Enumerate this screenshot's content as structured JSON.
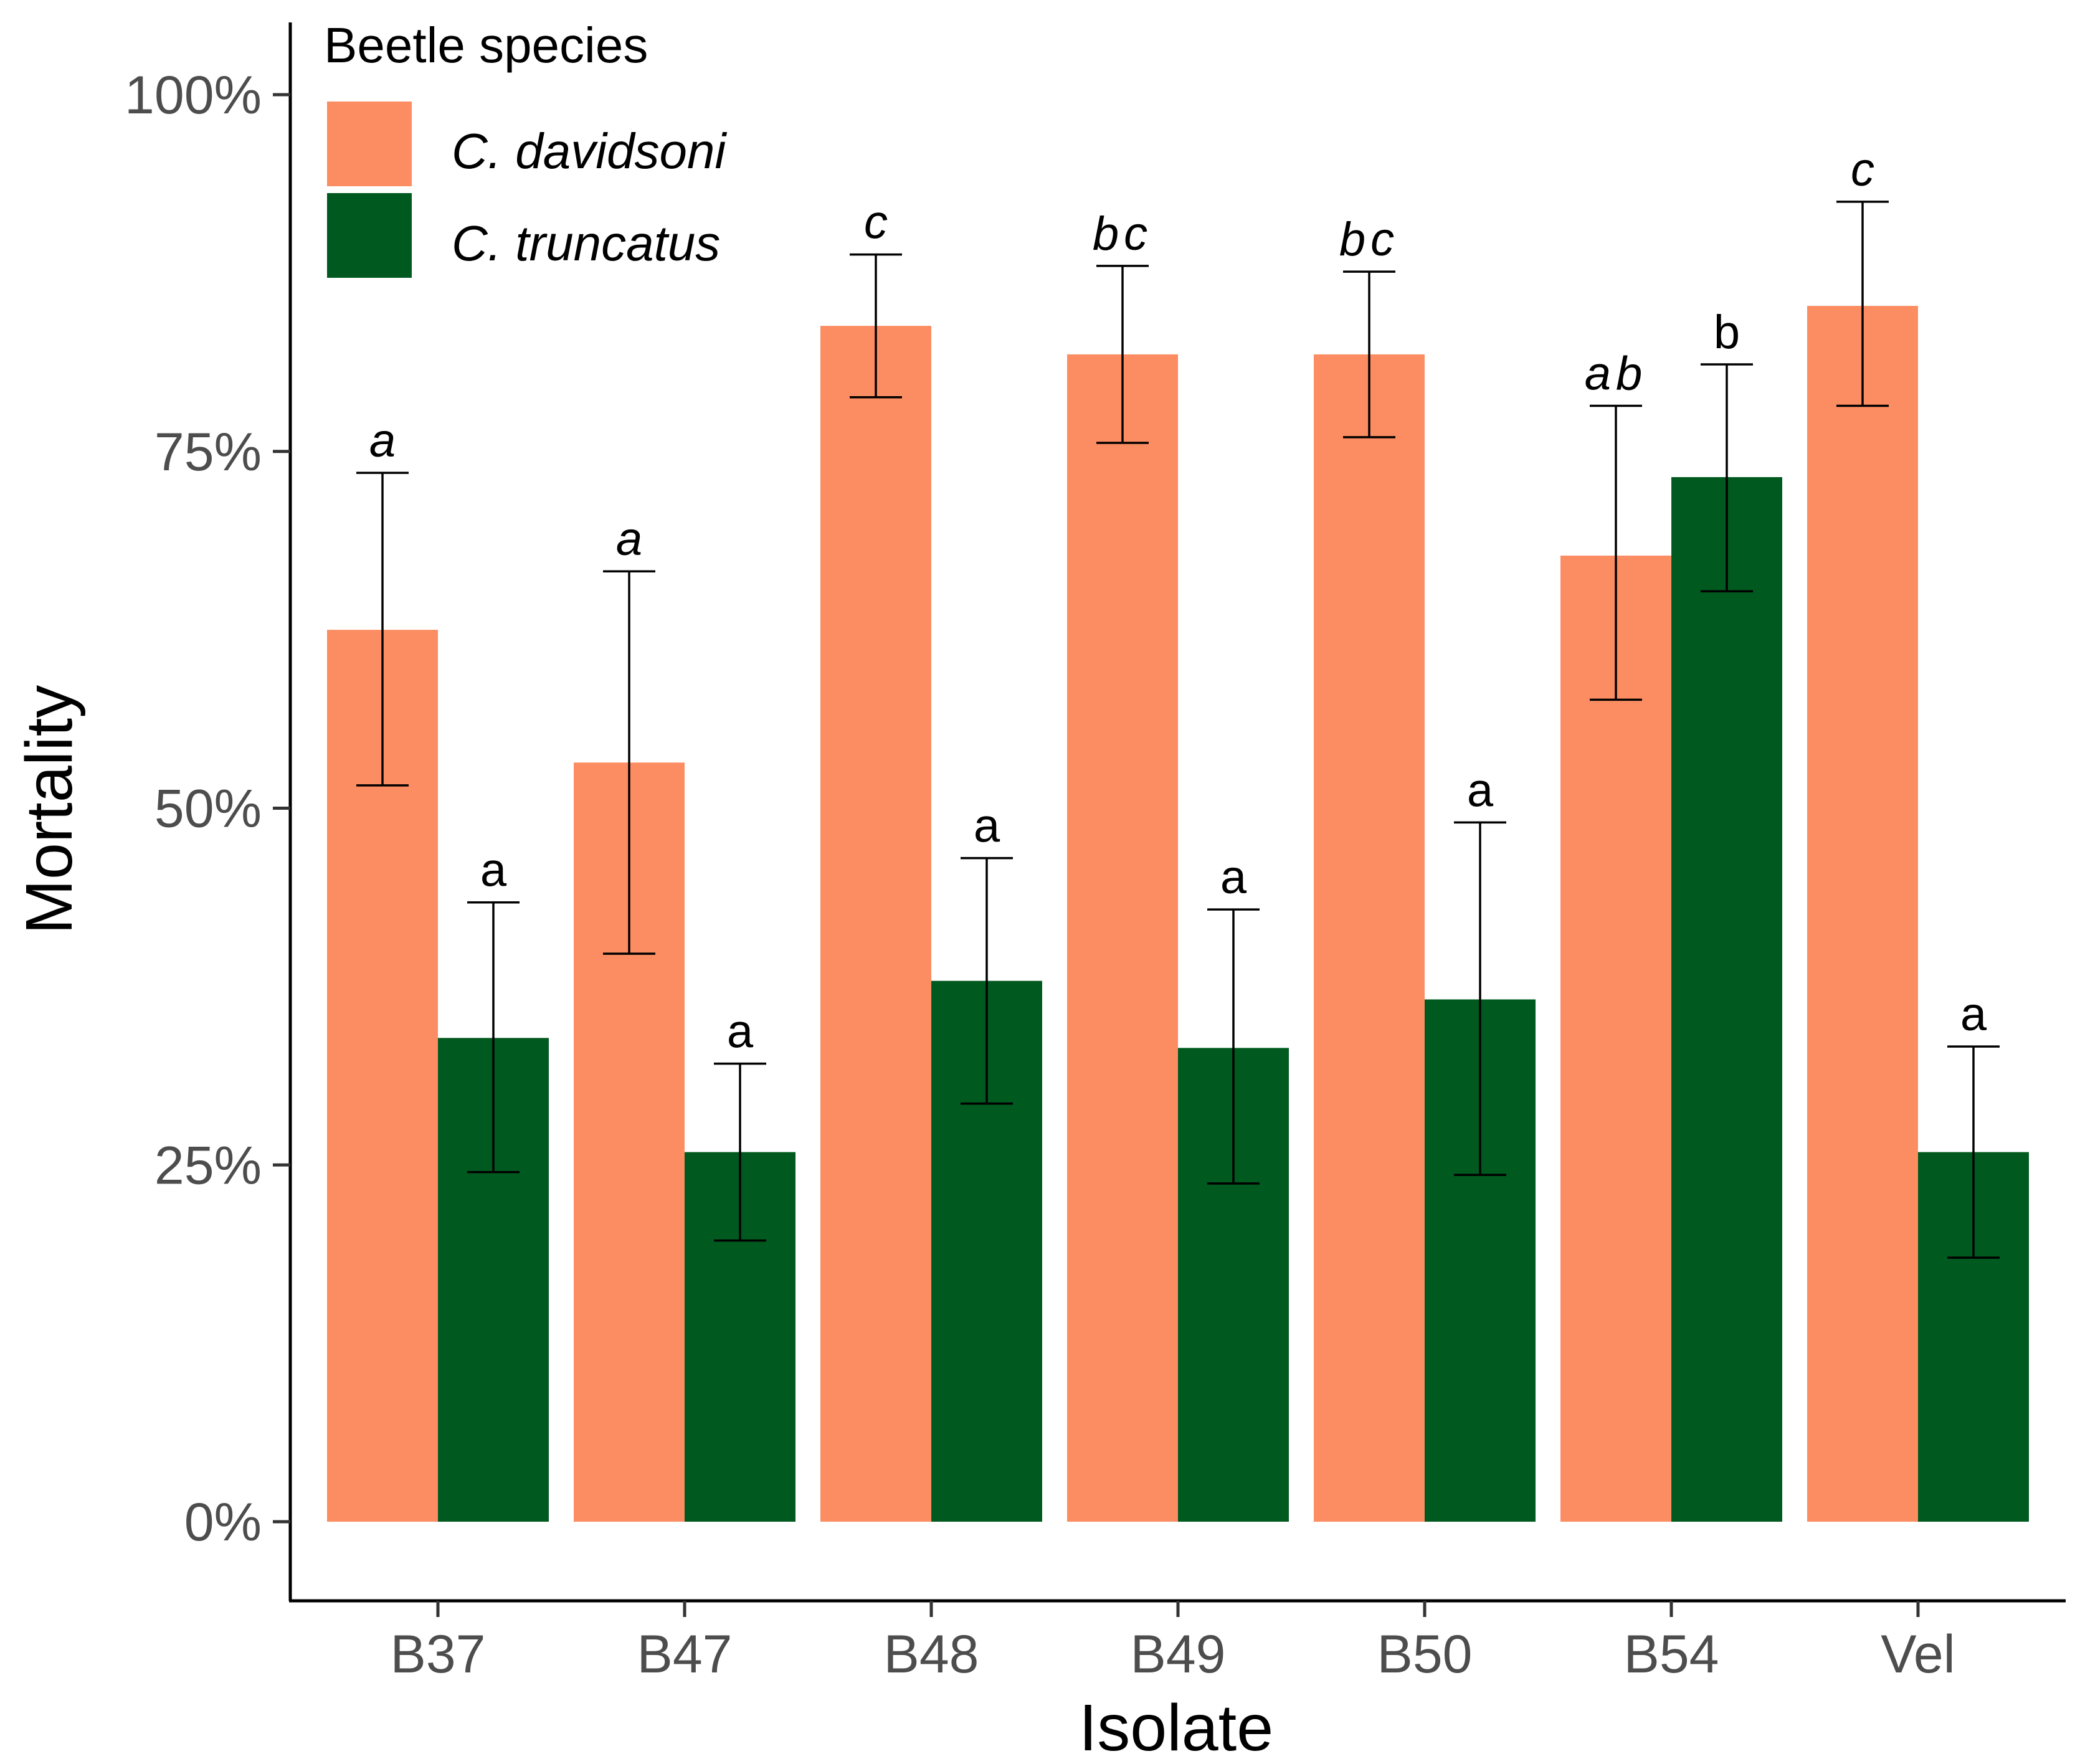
{
  "chart_data": {
    "type": "bar",
    "title": "",
    "xlabel": "Isolate",
    "ylabel": "Mortality",
    "ylim": [
      0,
      1.05
    ],
    "yticks": [
      0,
      0.25,
      0.5,
      0.75,
      1.0
    ],
    "ytick_labels": [
      "0%",
      "25%",
      "50%",
      "75%",
      "100%"
    ],
    "grid": false,
    "legend": {
      "title": "Beetle species",
      "position": "top-left"
    },
    "categories": [
      "B37",
      "B47",
      "B48",
      "B49",
      "B50",
      "B54",
      "Vel"
    ],
    "series": [
      {
        "name": "C. davidsoni",
        "color": "#FC8D62",
        "values": [
          0.625,
          0.532,
          0.838,
          0.818,
          0.818,
          0.677,
          0.852
        ],
        "err_low": [
          0.516,
          0.398,
          0.788,
          0.756,
          0.76,
          0.576,
          0.782
        ],
        "err_high": [
          0.735,
          0.666,
          0.888,
          0.88,
          0.876,
          0.782,
          0.925
        ],
        "letters": [
          "a",
          "a",
          "c",
          "bc",
          "bc",
          "ab",
          "c"
        ],
        "letters_italic": true
      },
      {
        "name": "C. truncatus",
        "color": "#005A1F",
        "values": [
          0.339,
          0.259,
          0.379,
          0.332,
          0.366,
          0.732,
          0.259
        ],
        "err_low": [
          0.245,
          0.197,
          0.293,
          0.237,
          0.243,
          0.652,
          0.185
        ],
        "err_high": [
          0.434,
          0.321,
          0.465,
          0.429,
          0.49,
          0.811,
          0.333
        ],
        "letters": [
          "a",
          "a",
          "a",
          "a",
          "a",
          "b",
          "a"
        ],
        "letters_italic": false
      }
    ]
  }
}
